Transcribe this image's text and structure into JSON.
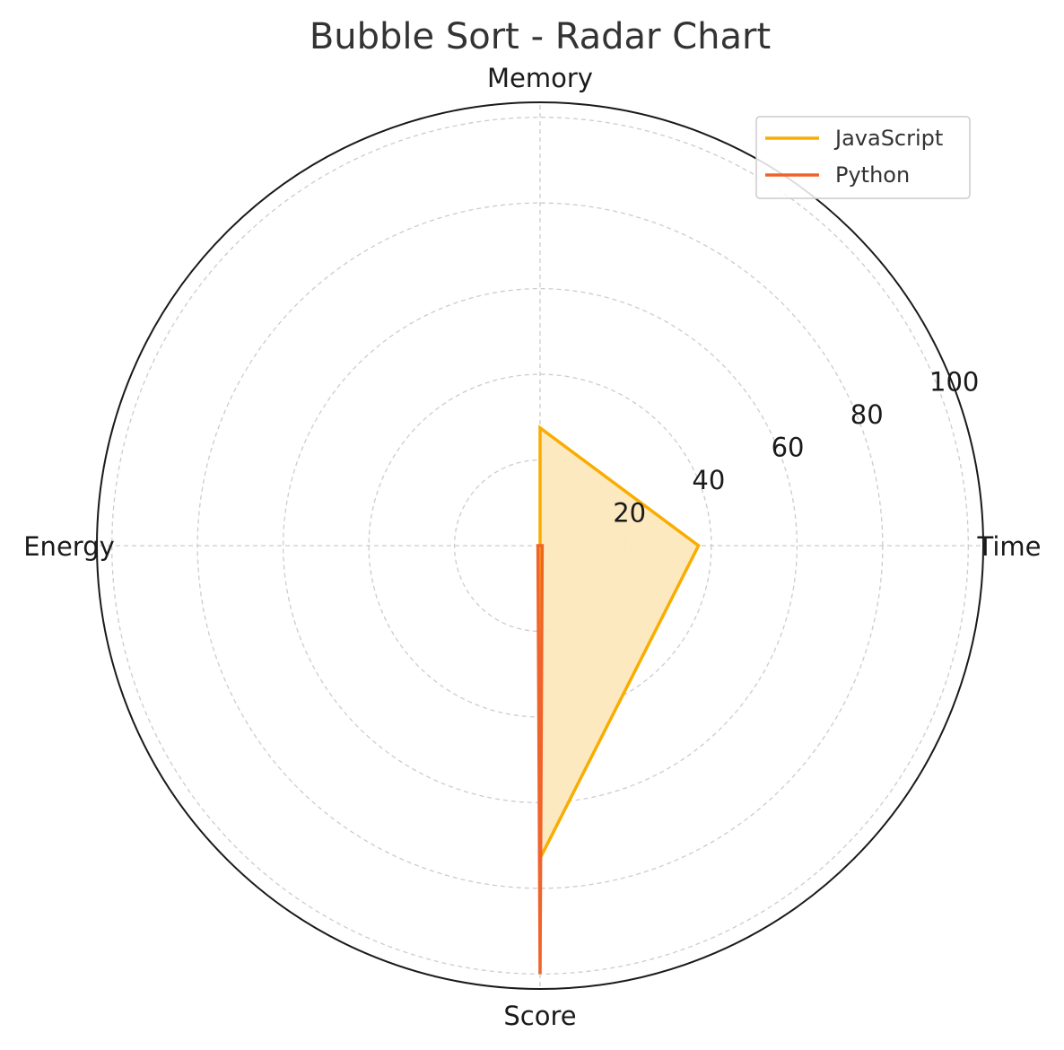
{
  "chart_data": {
    "type": "radar",
    "title": "Bubble Sort - Radar Chart",
    "axes": [
      "Time",
      "Memory",
      "Energy",
      "Score"
    ],
    "rmax": 103.5,
    "rticks": [
      20,
      40,
      60,
      80,
      100
    ],
    "grid": true,
    "legend_position": "top-right",
    "series": [
      {
        "name": "JavaScript",
        "values": [
          37,
          27.5,
          0,
          73
        ],
        "color": "#f8ad00",
        "fill": "#fde8bd"
      },
      {
        "name": "Python",
        "values": [
          0.5,
          0,
          0.5,
          100
        ],
        "color": "#f0632a"
      }
    ]
  }
}
